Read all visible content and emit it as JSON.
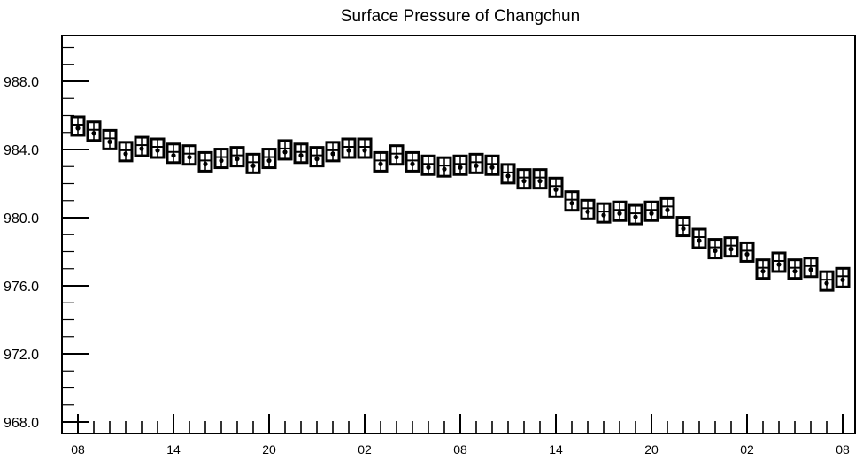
{
  "chart_data": {
    "type": "scatter",
    "title": "Surface Pressure of Changchun",
    "xlabel": "",
    "ylabel": "",
    "ylim": [
      968.0,
      990.0
    ],
    "y_ticks": [
      "968.0",
      "972.0",
      "976.0",
      "980.0",
      "984.0",
      "988.0"
    ],
    "x_tick_labels": [
      "08",
      "14",
      "20",
      "02",
      "08",
      "14",
      "20",
      "02",
      "08"
    ],
    "x": [
      "08",
      "09",
      "10",
      "11",
      "12",
      "13",
      "14",
      "15",
      "16",
      "17",
      "18",
      "19",
      "20",
      "21",
      "22",
      "23",
      "00",
      "01",
      "02",
      "03",
      "04",
      "05",
      "06",
      "07",
      "08",
      "09",
      "10",
      "11",
      "12",
      "13",
      "14",
      "15",
      "16",
      "17",
      "18",
      "19",
      "20",
      "21",
      "22",
      "23",
      "00",
      "01",
      "02",
      "03",
      "04",
      "05",
      "06",
      "07",
      "08"
    ],
    "series": [
      {
        "marker": "boxed-dot",
        "values": [
          985.3,
          985.0,
          984.5,
          983.8,
          984.1,
          984.0,
          983.7,
          983.6,
          983.2,
          983.4,
          983.5,
          983.1,
          983.4,
          983.9,
          983.7,
          983.5,
          983.8,
          984.0,
          984.0,
          983.2,
          983.6,
          983.2,
          983.0,
          982.9,
          983.0,
          983.1,
          983.0,
          982.5,
          982.2,
          982.2,
          981.7,
          980.9,
          980.4,
          980.2,
          980.3,
          980.1,
          980.3,
          980.5,
          979.4,
          978.7,
          978.1,
          978.2,
          977.9,
          976.9,
          977.3,
          976.9,
          977.0,
          976.2,
          976.4
        ]
      }
    ],
    "grid": false,
    "legend": "none"
  }
}
